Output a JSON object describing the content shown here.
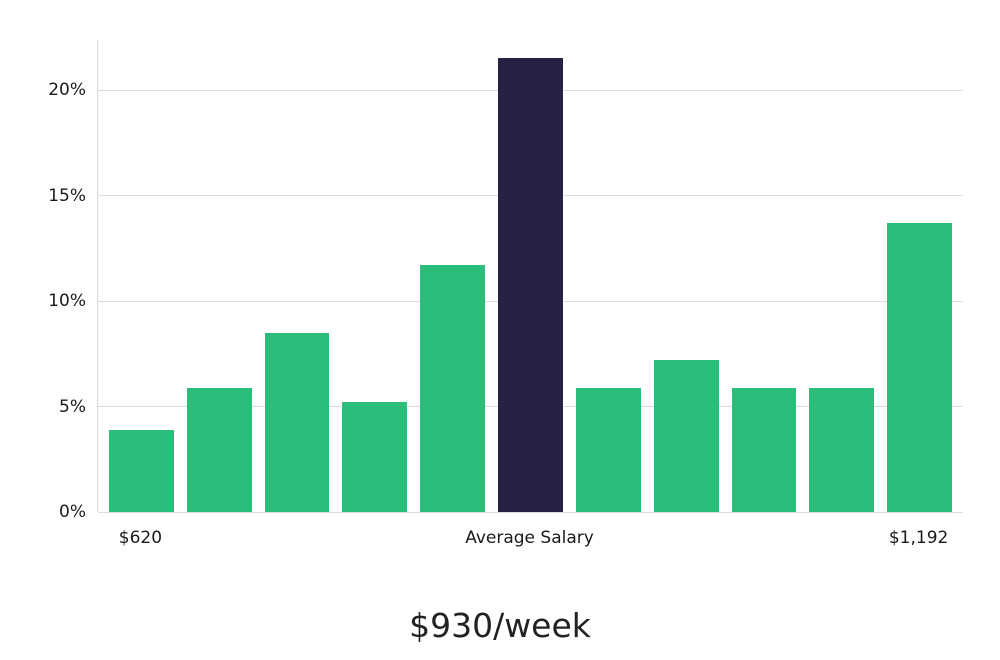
{
  "chart_data": {
    "type": "bar",
    "title": "$930/week",
    "subtitle": "",
    "xlabel": "",
    "ylabel": "",
    "values": [
      3.9,
      5.9,
      8.5,
      5.2,
      11.7,
      21.5,
      5.9,
      7.2,
      5.9,
      5.9,
      13.7
    ],
    "bar_color_keys": [
      "green",
      "green",
      "green",
      "green",
      "green",
      "accent",
      "green",
      "green",
      "green",
      "green",
      "green"
    ],
    "colors": {
      "green": "#2dbd7b",
      "accent": "#252243",
      "gridline": "#dcdcdc",
      "text": "#1a1a1a"
    },
    "ylim": [
      0,
      22.37
    ],
    "yticks": [
      0,
      5,
      10,
      15,
      20
    ],
    "ytick_labels": [
      "0%",
      "5%",
      "10%",
      "15%",
      "20%"
    ],
    "xticks": [
      {
        "bar_index": 0,
        "label": "$620"
      },
      {
        "bar_index": 5,
        "label": "Average Salary"
      },
      {
        "bar_index": 10,
        "label": "$1,192"
      }
    ],
    "grid": true,
    "legend": "none"
  }
}
